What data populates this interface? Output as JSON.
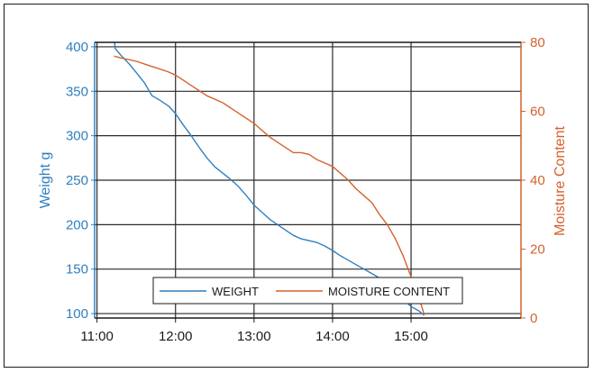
{
  "chart_data": {
    "type": "line",
    "title": "",
    "xlabel": "",
    "ylabel_left": "Weight g",
    "ylabel_right": "Moisture Content",
    "x_ticks": [
      "11:00",
      "12:00",
      "13:00",
      "14:00",
      "15:00"
    ],
    "x_range_hours": [
      10.97,
      16.4
    ],
    "ylim_left": [
      95,
      405
    ],
    "ylim_right": [
      0,
      80
    ],
    "yticks_left": [
      100,
      150,
      200,
      250,
      300,
      350,
      400
    ],
    "yticks_right": [
      0,
      20,
      40,
      60,
      80
    ],
    "grid": true,
    "legend_location": "bottom-center",
    "series": [
      {
        "name": "WEIGHT",
        "axis": "left",
        "color": "#2f7fbf",
        "x": [
          "11:13",
          "11:14",
          "11:18",
          "11:20",
          "11:25",
          "11:30",
          "11:36",
          "11:42",
          "11:48",
          "11:55",
          "12:00",
          "12:06",
          "12:12",
          "12:18",
          "12:24",
          "12:30",
          "12:36",
          "12:42",
          "12:48",
          "12:54",
          "13:00",
          "13:06",
          "13:12",
          "13:18",
          "13:24",
          "13:30",
          "13:36",
          "13:42",
          "13:48",
          "13:54",
          "14:00",
          "14:06",
          "14:12",
          "14:18",
          "14:24",
          "14:30",
          "14:36",
          "14:42",
          "14:48",
          "14:54",
          "15:00",
          "15:06",
          "15:10"
        ],
        "values": [
          410,
          398,
          391,
          388,
          380,
          371,
          360,
          345,
          340,
          333,
          325,
          312,
          300,
          287,
          275,
          265,
          258,
          251,
          243,
          233,
          222,
          214,
          206,
          200,
          194,
          188,
          184,
          182,
          180,
          176,
          171,
          165,
          160,
          155,
          150,
          145,
          140,
          132,
          125,
          116,
          108,
          103,
          98
        ]
      },
      {
        "name": "MOISTURE CONTENT",
        "axis": "right",
        "color": "#d4612c",
        "x": [
          "11:13",
          "11:18",
          "11:30",
          "11:42",
          "11:54",
          "12:00",
          "12:06",
          "12:12",
          "12:18",
          "12:24",
          "12:30",
          "12:36",
          "12:42",
          "12:48",
          "12:54",
          "13:00",
          "13:06",
          "13:12",
          "13:18",
          "13:24",
          "13:30",
          "13:36",
          "13:42",
          "13:48",
          "13:54",
          "14:00",
          "14:06",
          "14:12",
          "14:18",
          "14:24",
          "14:30",
          "14:36",
          "14:42",
          "14:48",
          "14:54",
          "15:00",
          "15:06",
          "15:10"
        ],
        "values": [
          76,
          75.5,
          74.5,
          73,
          71.5,
          70.5,
          69,
          67.5,
          66,
          64.5,
          63.5,
          62.5,
          61,
          59.5,
          58,
          56.5,
          54.5,
          52.5,
          51,
          49.5,
          48,
          48,
          47.5,
          46,
          45,
          44,
          42,
          40,
          37.5,
          35.5,
          33.5,
          30,
          27,
          23,
          18,
          12,
          6,
          1
        ]
      }
    ]
  }
}
